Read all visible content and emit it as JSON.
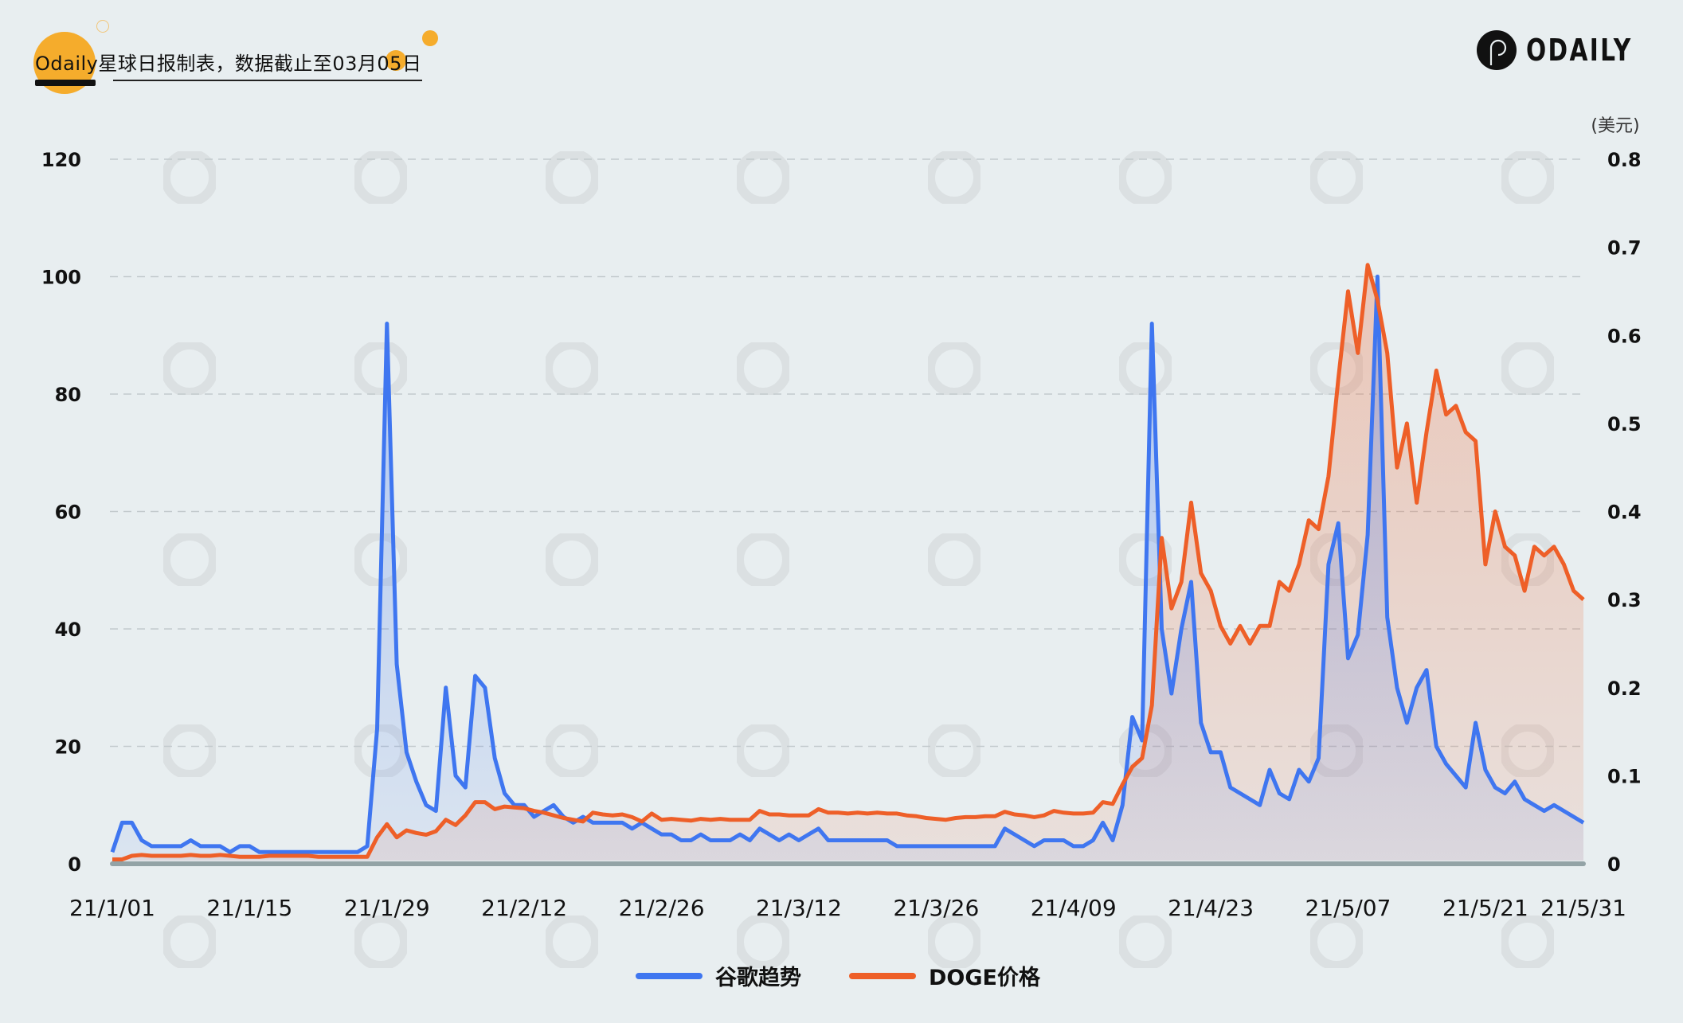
{
  "header": {
    "title": "Odaily星球日报制表，数据截止至03月05日",
    "brand_text": "ODAILY"
  },
  "colors": {
    "background": "#e8eef0",
    "accent": "#f5ac2c",
    "google_trend": "#3f76f0",
    "doge_price": "#ee5f28",
    "baseline": "#93a3a6",
    "grid": "#c3cacd"
  },
  "icons": {
    "logo": "odaily-logo-icon"
  },
  "chart_data": {
    "type": "line",
    "title": "Odaily星球日报制表，数据截止至03月05日",
    "xlabel": "",
    "ylabel_left": "",
    "ylabel_right": "(美元)",
    "ylim_left": [
      0,
      120
    ],
    "ylim_right": [
      0,
      0.8
    ],
    "yticks_left": [
      "0",
      "20",
      "40",
      "60",
      "80",
      "100",
      "120"
    ],
    "yticks_right": [
      "0",
      "0.1",
      "0.2",
      "0.3",
      "0.4",
      "0.5",
      "0.6",
      "0.7",
      "0.8"
    ],
    "xticks": [
      "21/1/01",
      "21/1/15",
      "21/1/29",
      "21/2/12",
      "21/2/26",
      "21/3/12",
      "21/3/26",
      "21/4/09",
      "21/4/23",
      "21/5/07",
      "21/5/21",
      "21/5/31"
    ],
    "x_range": [
      "2021-01-01",
      "2021-05-31"
    ],
    "grid": true,
    "legend_position": "bottom",
    "area_fill": true,
    "series": [
      {
        "name": "谷歌趋势",
        "axis": "left",
        "color": "#3f76f0",
        "values": [
          2,
          7,
          7,
          4,
          3,
          3,
          3,
          3,
          4,
          3,
          3,
          3,
          2,
          3,
          3,
          2,
          2,
          2,
          2,
          2,
          2,
          2,
          2,
          2,
          2,
          2,
          3,
          23,
          92,
          34,
          19,
          14,
          10,
          9,
          30,
          15,
          13,
          32,
          30,
          18,
          12,
          10,
          10,
          8,
          9,
          10,
          8,
          7,
          8,
          7,
          7,
          7,
          7,
          6,
          7,
          6,
          5,
          5,
          4,
          4,
          5,
          4,
          4,
          4,
          5,
          4,
          6,
          5,
          4,
          5,
          4,
          5,
          6,
          4,
          4,
          4,
          4,
          4,
          4,
          4,
          3,
          3,
          3,
          3,
          3,
          3,
          3,
          3,
          3,
          3,
          3,
          6,
          5,
          4,
          3,
          4,
          4,
          4,
          3,
          3,
          4,
          7,
          4,
          10,
          25,
          21,
          92,
          40,
          29,
          40,
          48,
          24,
          19,
          19,
          13,
          12,
          11,
          10,
          16,
          12,
          11,
          16,
          14,
          18,
          51,
          58,
          35,
          39,
          56,
          100,
          42,
          30,
          24,
          30,
          33,
          20,
          17,
          15,
          13,
          24,
          16,
          13,
          12,
          14,
          11,
          10,
          9,
          10,
          9,
          8,
          7
        ]
      },
      {
        "name": "DOGE价格",
        "axis": "right",
        "color": "#ee5f28",
        "values": [
          0.005,
          0.005,
          0.009,
          0.01,
          0.009,
          0.009,
          0.009,
          0.009,
          0.01,
          0.009,
          0.009,
          0.01,
          0.009,
          0.008,
          0.008,
          0.008,
          0.009,
          0.009,
          0.009,
          0.009,
          0.009,
          0.008,
          0.008,
          0.008,
          0.008,
          0.008,
          0.008,
          0.03,
          0.045,
          0.03,
          0.038,
          0.035,
          0.033,
          0.037,
          0.05,
          0.044,
          0.055,
          0.07,
          0.07,
          0.062,
          0.065,
          0.064,
          0.063,
          0.06,
          0.058,
          0.055,
          0.052,
          0.05,
          0.048,
          0.058,
          0.056,
          0.055,
          0.056,
          0.053,
          0.048,
          0.057,
          0.05,
          0.051,
          0.05,
          0.049,
          0.051,
          0.05,
          0.051,
          0.05,
          0.05,
          0.05,
          0.06,
          0.056,
          0.056,
          0.055,
          0.055,
          0.055,
          0.062,
          0.058,
          0.058,
          0.057,
          0.058,
          0.057,
          0.058,
          0.057,
          0.057,
          0.055,
          0.054,
          0.052,
          0.051,
          0.05,
          0.052,
          0.053,
          0.053,
          0.054,
          0.054,
          0.059,
          0.056,
          0.055,
          0.053,
          0.055,
          0.06,
          0.058,
          0.057,
          0.057,
          0.058,
          0.07,
          0.068,
          0.09,
          0.11,
          0.12,
          0.18,
          0.37,
          0.29,
          0.32,
          0.41,
          0.33,
          0.31,
          0.27,
          0.25,
          0.27,
          0.25,
          0.27,
          0.27,
          0.32,
          0.31,
          0.34,
          0.39,
          0.38,
          0.44,
          0.55,
          0.65,
          0.58,
          0.68,
          0.64,
          0.58,
          0.45,
          0.5,
          0.41,
          0.49,
          0.56,
          0.51,
          0.52,
          0.49,
          0.48,
          0.34,
          0.4,
          0.36,
          0.35,
          0.31,
          0.36,
          0.35,
          0.36,
          0.34,
          0.31,
          0.3
        ]
      }
    ]
  },
  "legend": [
    {
      "label": "谷歌趋势",
      "color": "#3f76f0"
    },
    {
      "label": "DOGE价格",
      "color": "#ee5f28"
    }
  ]
}
